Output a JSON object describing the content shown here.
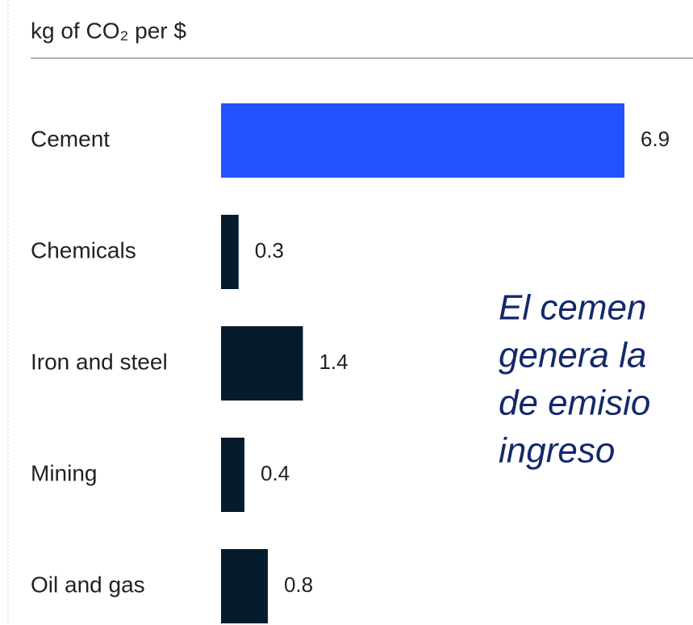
{
  "chart_data": {
    "type": "bar",
    "orientation": "horizontal",
    "title": "kg of CO₂ per $",
    "categories": [
      "Cement",
      "Chemicals",
      "Iron and steel",
      "Mining",
      "Oil and gas"
    ],
    "values": [
      6.9,
      0.3,
      1.4,
      0.4,
      0.8
    ],
    "colors": [
      "#2251ff",
      "#051c2c",
      "#051c2c",
      "#051c2c",
      "#051c2c"
    ],
    "annotation": [
      "El cemen",
      "genera la",
      "de emisio",
      "ingreso"
    ]
  }
}
